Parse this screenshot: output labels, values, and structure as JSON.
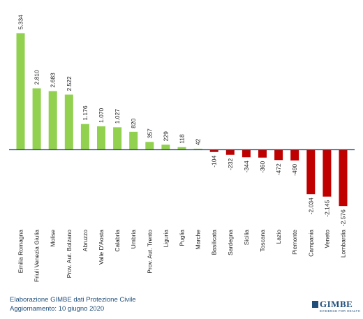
{
  "chart_data": {
    "type": "bar",
    "categories": [
      "Emilia Romagna",
      "Friuli Venezia Giulia",
      "Molise",
      "Prov. Aut. Bolzano",
      "Abruzzo",
      "Valle D'Aosta",
      "Calabria",
      "Umbria",
      "Prov. Aut. Trento",
      "Liguria",
      "Puglia",
      "Marche",
      "Basilicata",
      "Sardegna",
      "Sicilia",
      "Toscana",
      "Lazio",
      "Piemonte",
      "Campania",
      "Veneto",
      "Lombardia"
    ],
    "values": [
      5334,
      2810,
      2683,
      2522,
      1176,
      1070,
      1027,
      820,
      357,
      229,
      118,
      42,
      -104,
      -232,
      -344,
      -360,
      -472,
      -490,
      -2034,
      -2145,
      -2576
    ],
    "value_labels": [
      "5.334",
      "2.810",
      "2.683",
      "2.522",
      "1.176",
      "1.070",
      "1.027",
      "820",
      "357",
      "229",
      "118",
      "42",
      "-104",
      "-232",
      "-344",
      "-360",
      "-472",
      "-490",
      "-2.034",
      "-2.145",
      "-2.576"
    ],
    "title": "",
    "xlabel": "",
    "ylabel": "",
    "ylim": [
      -2700,
      5400
    ],
    "grid": false,
    "legend": "none",
    "colors": {
      "positive": "#92d050",
      "negative": "#c00000",
      "axis": "#1f4e79"
    }
  },
  "footer": {
    "line1": "Elaborazione GIMBE dati Protezione Civile",
    "line2": "Aggiornamento: 10 giugno 2020"
  },
  "logo": {
    "name": "GIMBE",
    "tagline": "EVIDENCE FOR HEALTH"
  }
}
